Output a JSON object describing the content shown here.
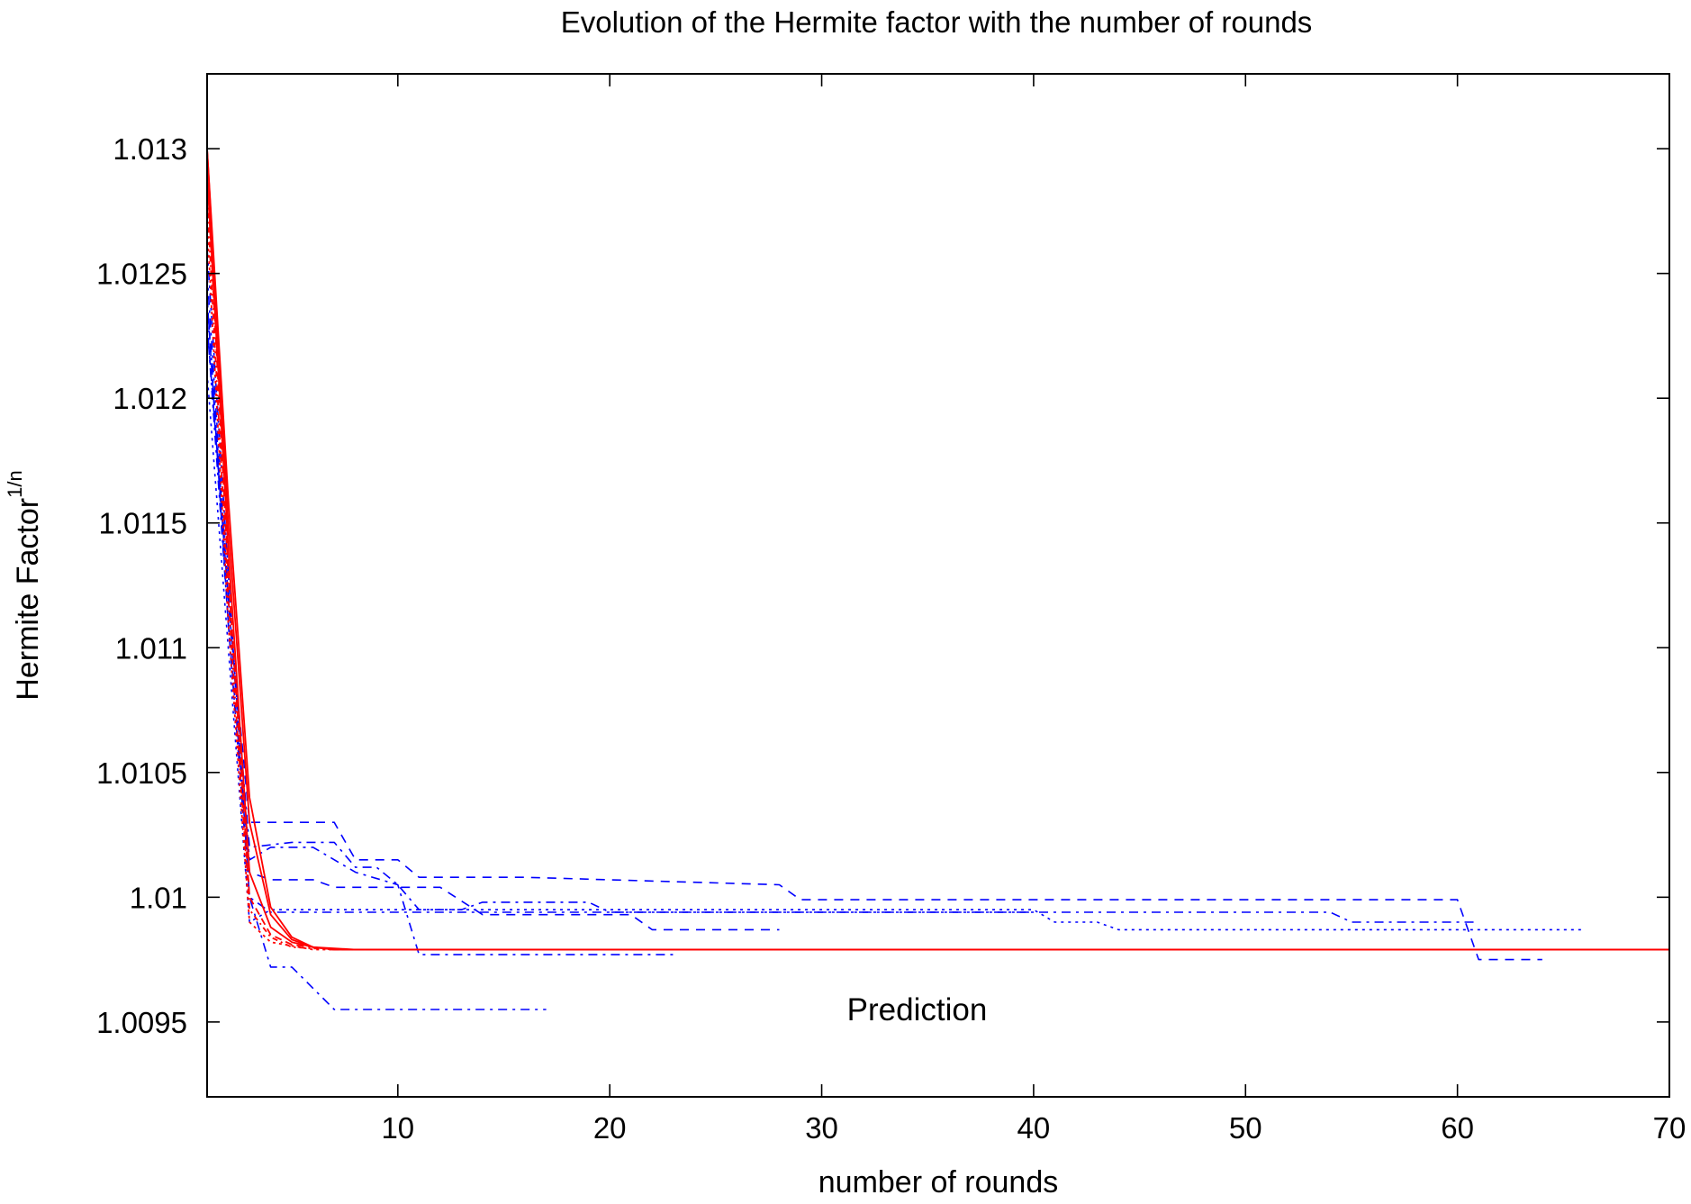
{
  "chart_data": {
    "type": "line",
    "title": "Evolution of the Hermite factor with the number of rounds",
    "xlabel": "number of rounds",
    "ylabel": "Hermite Factor",
    "ylabel_superscript": "1/n",
    "xlim": [
      1,
      70
    ],
    "ylim": [
      1.0092,
      1.0133
    ],
    "x_ticks": [
      10,
      20,
      30,
      40,
      50,
      60,
      70
    ],
    "y_ticks": [
      1.0095,
      1.01,
      1.0105,
      1.011,
      1.0115,
      1.012,
      1.0125,
      1.013
    ],
    "y_tick_labels": [
      "1.0095",
      "1.01",
      "1.0105",
      "1.011",
      "1.0115",
      "1.012",
      "1.0125",
      "1.013"
    ],
    "x_tick_labels": [
      "10",
      "20",
      "30",
      "40",
      "50",
      "60",
      "70"
    ],
    "grid": false,
    "annotations": [
      {
        "text": "Prediction",
        "x": 34.5,
        "y": 1.00955
      }
    ],
    "colors": {
      "experiment": "#0000ff",
      "prediction": "#ff0000"
    },
    "series": [
      {
        "color": "#0000ff",
        "dash": "10,8",
        "points": [
          [
            1,
            1.0123
          ],
          [
            2,
            1.0112
          ],
          [
            3,
            1.0103
          ],
          [
            4,
            1.0103
          ],
          [
            7,
            1.0103
          ],
          [
            8,
            1.01015
          ],
          [
            10,
            1.01015
          ],
          [
            11,
            1.01008
          ],
          [
            16,
            1.01008
          ],
          [
            28,
            1.01005
          ],
          [
            29,
            1.00999
          ],
          [
            60,
            1.00999
          ],
          [
            61,
            1.00975
          ],
          [
            64,
            1.00975
          ]
        ]
      },
      {
        "color": "#0000ff",
        "dash": "10,6,3,6",
        "points": [
          [
            1,
            1.0124
          ],
          [
            2,
            1.0112
          ],
          [
            3,
            1.0102
          ],
          [
            5,
            1.01022
          ],
          [
            7,
            1.01022
          ],
          [
            8,
            1.01012
          ],
          [
            9,
            1.01012
          ],
          [
            10,
            1.01005
          ],
          [
            11,
            1.00995
          ],
          [
            13,
            1.00995
          ],
          [
            14,
            1.00998
          ],
          [
            19,
            1.00998
          ],
          [
            20,
            1.00994
          ],
          [
            54,
            1.00994
          ],
          [
            55,
            1.0099
          ],
          [
            61,
            1.0099
          ]
        ]
      },
      {
        "color": "#0000ff",
        "dash": "10,6,3,6",
        "points": [
          [
            1,
            1.0126
          ],
          [
            2,
            1.0113
          ],
          [
            3,
            1.01
          ],
          [
            4,
            1.00972
          ],
          [
            5,
            1.00972
          ],
          [
            7,
            1.00955
          ],
          [
            17,
            1.00955
          ]
        ]
      },
      {
        "color": "#0000ff",
        "dash": "10,6,3,6",
        "points": [
          [
            1,
            1.0125
          ],
          [
            2,
            1.0112
          ],
          [
            3,
            1.01015
          ],
          [
            4,
            1.0102
          ],
          [
            6,
            1.0102
          ],
          [
            8,
            1.0101
          ],
          [
            10,
            1.01005
          ],
          [
            11,
            1.00977
          ],
          [
            23,
            1.00977
          ]
        ]
      },
      {
        "color": "#0000ff",
        "dash": "3,5",
        "points": [
          [
            1,
            1.0121
          ],
          [
            2,
            1.011
          ],
          [
            3,
            1.0099
          ],
          [
            4,
            1.00995
          ],
          [
            40,
            1.00995
          ],
          [
            41,
            1.0099
          ],
          [
            43,
            1.0099
          ],
          [
            44,
            1.00987
          ],
          [
            66,
            1.00987
          ]
        ]
      },
      {
        "color": "#0000ff",
        "dash": "10,8",
        "points": [
          [
            1,
            1.0124
          ],
          [
            2,
            1.0111
          ],
          [
            3,
            1.0101
          ],
          [
            4,
            1.01007
          ],
          [
            6,
            1.01007
          ],
          [
            7,
            1.01004
          ],
          [
            12,
            1.01004
          ],
          [
            14,
            1.00993
          ],
          [
            21,
            1.00993
          ],
          [
            22,
            1.00987
          ],
          [
            28,
            1.00987
          ]
        ]
      },
      {
        "color": "#0000ff",
        "dash": "10,6,3,6",
        "points": [
          [
            1,
            1.0123
          ],
          [
            2,
            1.0111
          ],
          [
            3,
            1.01
          ],
          [
            4,
            1.00994
          ],
          [
            40,
            1.00994
          ]
        ]
      },
      {
        "color": "#ff0000",
        "dash": "",
        "points": [
          [
            1,
            1.013
          ],
          [
            2,
            1.0115
          ],
          [
            3,
            1.0103
          ],
          [
            4,
            1.00993
          ],
          [
            5,
            1.00983
          ],
          [
            6,
            1.0098
          ],
          [
            7,
            1.00979
          ],
          [
            70,
            1.00979
          ]
        ]
      },
      {
        "color": "#ff0000",
        "dash": "",
        "points": [
          [
            1,
            1.0129
          ],
          [
            2,
            1.0114
          ],
          [
            3,
            1.0101
          ],
          [
            4,
            1.00988
          ],
          [
            5,
            1.00982
          ],
          [
            6,
            1.0098
          ],
          [
            7,
            1.00979
          ],
          [
            70,
            1.00979
          ]
        ]
      },
      {
        "color": "#ff0000",
        "dash": "8,5",
        "points": [
          [
            1,
            1.0129
          ],
          [
            2,
            1.0113
          ],
          [
            3,
            1.01
          ],
          [
            4,
            1.00985
          ],
          [
            5,
            1.00981
          ],
          [
            7,
            1.00979
          ],
          [
            70,
            1.00979
          ]
        ]
      },
      {
        "color": "#ff0000",
        "dash": "",
        "points": [
          [
            1,
            1.013
          ],
          [
            2,
            1.0116
          ],
          [
            3,
            1.0104
          ],
          [
            4,
            1.00996
          ],
          [
            5,
            1.00984
          ],
          [
            6,
            1.0098
          ],
          [
            8,
            1.00979
          ],
          [
            70,
            1.00979
          ]
        ]
      },
      {
        "color": "#ff0000",
        "dash": "6,4,2,4",
        "points": [
          [
            1,
            1.0128
          ],
          [
            2,
            1.0112
          ],
          [
            3,
            1.00995
          ],
          [
            4,
            1.00984
          ],
          [
            5,
            1.0098
          ],
          [
            7,
            1.00979
          ],
          [
            70,
            1.00979
          ]
        ]
      },
      {
        "color": "#ff0000",
        "dash": "3,4",
        "points": [
          [
            1,
            1.0127
          ],
          [
            2,
            1.0111
          ],
          [
            3,
            1.0099
          ],
          [
            4,
            1.00982
          ],
          [
            6,
            1.00979
          ],
          [
            70,
            1.00979
          ]
        ]
      }
    ]
  }
}
